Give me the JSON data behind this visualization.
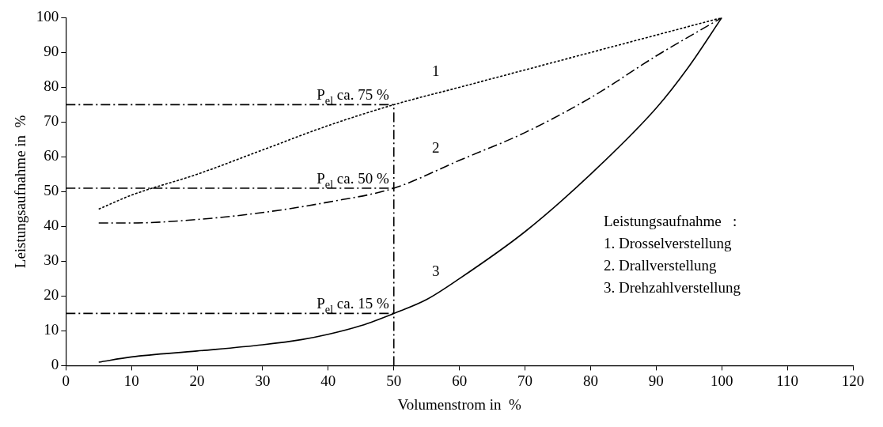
{
  "chart_data": {
    "type": "line",
    "xlabel": "Volumenstrom in  %",
    "ylabel": "Leistungsaufnahme in  %",
    "xlim": [
      0,
      120
    ],
    "xticks": [
      0,
      10,
      20,
      30,
      40,
      50,
      60,
      70,
      80,
      90,
      100,
      110,
      120
    ],
    "ylim": [
      0,
      100
    ],
    "yticks": [
      0,
      10,
      20,
      30,
      40,
      50,
      60,
      70,
      80,
      90,
      100
    ],
    "grid": false,
    "legend": false,
    "marker": "none",
    "series": [
      {
        "name": "1",
        "color": "#000000",
        "line_style": "dotted",
        "x": [
          5,
          10,
          20,
          30,
          40,
          50,
          60,
          70,
          80,
          90,
          100
        ],
        "values": [
          45,
          49,
          55,
          62,
          69,
          75,
          80,
          85,
          90,
          95,
          100
        ]
      },
      {
        "name": "2",
        "color": "#000000",
        "line_style": "dashed",
        "x": [
          5,
          10,
          20,
          30,
          40,
          50,
          60,
          70,
          80,
          90,
          100
        ],
        "values": [
          41,
          41,
          42,
          44,
          47,
          51,
          59,
          67,
          77,
          89,
          100
        ]
      },
      {
        "name": "3",
        "color": "#000000",
        "line_style": "solid",
        "x": [
          5,
          10,
          20,
          30,
          36,
          40,
          45,
          50,
          55,
          60,
          70,
          80,
          90,
          95,
          100
        ],
        "values": [
          1,
          2.5,
          4.2,
          6,
          7.5,
          9,
          11.5,
          15,
          19,
          25,
          38.5,
          55,
          74,
          86,
          100
        ]
      },
      {
        "color": "#000000",
        "line_style": "dashed",
        "x": [
          0,
          50
        ],
        "values": [
          75,
          75
        ]
      },
      {
        "color": "#000000",
        "line_style": "dashed",
        "x": [
          0,
          50
        ],
        "values": [
          51,
          51
        ]
      },
      {
        "color": "#000000",
        "line_style": "dashed",
        "x": [
          0,
          50
        ],
        "values": [
          15,
          15
        ]
      },
      {
        "color": "#000000",
        "line_style": "dashed",
        "x": [
          50,
          50
        ],
        "values": [
          0,
          75
        ]
      }
    ],
    "annotations": [
      {
        "text": "P$_{el}$ ca. 75 %",
        "y": 75
      },
      {
        "text": "P$_{el}$ ca. 50 %",
        "y": 51
      },
      {
        "text": "P$_{el}$ ca. 15 %",
        "y": 15
      },
      "Leistungsaufnahme   :",
      "1. Drosselverstellung",
      "2. Drallverstellung",
      "3. Drehzahlverstellung"
    ]
  }
}
